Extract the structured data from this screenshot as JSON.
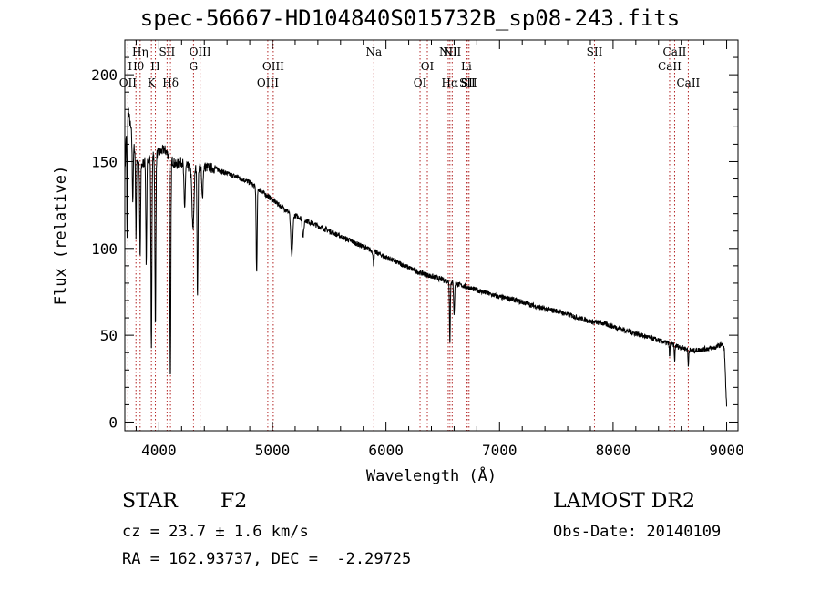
{
  "title": "spec-56667-HD104840S015732B_sp08-243.fits",
  "footer": {
    "class": "STAR",
    "subclass": "F2",
    "survey": "LAMOST DR2",
    "cz": "cz = 23.7 ± 1.6 km/s",
    "obs_date": "Obs-Date: 20140109",
    "radec": "RA = 162.93737, DEC =  -2.29725"
  },
  "colors": {
    "spectrum": "#000000",
    "line_markers": "#b22222",
    "axes": "#000000"
  },
  "chart_data": {
    "type": "line",
    "title": "spec-56667-HD104840S015732B_sp08-243.fits",
    "xlabel": "Wavelength (Å)",
    "ylabel": "Flux (relative)",
    "xlim": [
      3700,
      9100
    ],
    "ylim": [
      -5,
      220
    ],
    "xticks": [
      4000,
      5000,
      6000,
      7000,
      8000,
      9000
    ],
    "yticks": [
      0,
      50,
      100,
      150,
      200
    ],
    "grid": false,
    "series": [
      {
        "continuum": [
          [
            3700,
            140
          ],
          [
            3720,
            185
          ],
          [
            3750,
            170
          ],
          [
            3800,
            152
          ],
          [
            3850,
            148
          ],
          [
            3900,
            152
          ],
          [
            3950,
            153
          ],
          [
            4000,
            155
          ],
          [
            4050,
            157
          ],
          [
            4100,
            152
          ],
          [
            4150,
            148
          ],
          [
            4200,
            150
          ],
          [
            4250,
            147
          ],
          [
            4300,
            146
          ],
          [
            4350,
            147
          ],
          [
            4400,
            147
          ],
          [
            4500,
            146
          ],
          [
            4600,
            143
          ],
          [
            4700,
            141
          ],
          [
            4800,
            138
          ],
          [
            4900,
            133
          ],
          [
            5000,
            128
          ],
          [
            5100,
            123
          ],
          [
            5200,
            119
          ],
          [
            5300,
            116
          ],
          [
            5400,
            113
          ],
          [
            5500,
            110
          ],
          [
            5600,
            107
          ],
          [
            5700,
            104
          ],
          [
            5800,
            101
          ],
          [
            5900,
            98
          ],
          [
            6000,
            95
          ],
          [
            6100,
            92
          ],
          [
            6200,
            89
          ],
          [
            6300,
            86
          ],
          [
            6400,
            84
          ],
          [
            6500,
            82
          ],
          [
            6600,
            80
          ],
          [
            6700,
            78
          ],
          [
            6800,
            76
          ],
          [
            6900,
            74
          ],
          [
            7000,
            72
          ],
          [
            7100,
            71
          ],
          [
            7200,
            69
          ],
          [
            7300,
            67
          ],
          [
            7400,
            65
          ],
          [
            7500,
            64
          ],
          [
            7600,
            62
          ],
          [
            7700,
            60
          ],
          [
            7800,
            58
          ],
          [
            7900,
            57
          ],
          [
            8000,
            55
          ],
          [
            8100,
            53
          ],
          [
            8200,
            51
          ],
          [
            8300,
            49
          ],
          [
            8400,
            47
          ],
          [
            8500,
            45
          ],
          [
            8600,
            43
          ],
          [
            8700,
            41
          ],
          [
            8800,
            42
          ],
          [
            8900,
            43
          ],
          [
            8960,
            45
          ],
          [
            8980,
            42
          ],
          [
            9000,
            8
          ]
        ],
        "absorption_lines": [
          [
            3720,
            80,
            4
          ],
          [
            3770,
            35,
            6
          ],
          [
            3798,
            45,
            5
          ],
          [
            3835,
            55,
            6
          ],
          [
            3889,
            60,
            6
          ],
          [
            3934,
            110,
            6
          ],
          [
            3969,
            100,
            6
          ],
          [
            4101,
            130,
            6
          ],
          [
            4226,
            25,
            8
          ],
          [
            4300,
            35,
            12
          ],
          [
            4340,
            75,
            6
          ],
          [
            4383,
            18,
            8
          ],
          [
            4861,
            50,
            6
          ],
          [
            5170,
            25,
            12
          ],
          [
            5270,
            10,
            10
          ],
          [
            5890,
            7,
            6
          ],
          [
            6563,
            35,
            5
          ],
          [
            6600,
            18,
            6
          ],
          [
            8498,
            8,
            4
          ],
          [
            8542,
            10,
            4
          ],
          [
            8662,
            10,
            4
          ]
        ],
        "noise_amplitude": 3
      }
    ],
    "line_markers": [
      {
        "label": "OII",
        "wavelength": 3727,
        "row": 3
      },
      {
        "label": "Hθ",
        "wavelength": 3798,
        "row": 2
      },
      {
        "label": "Hη",
        "wavelength": 3835,
        "row": 1
      },
      {
        "label": "K",
        "wavelength": 3934,
        "row": 3
      },
      {
        "label": "H",
        "wavelength": 3969,
        "row": 2
      },
      {
        "label": "SII",
        "wavelength": 4072,
        "row": 1
      },
      {
        "label": "Hδ",
        "wavelength": 4102,
        "row": 3
      },
      {
        "label": "G",
        "wavelength": 4305,
        "row": 2
      },
      {
        "label": "OIII",
        "wavelength": 4363,
        "row": 1
      },
      {
        "label": "OIII",
        "wavelength": 4959,
        "row": 3
      },
      {
        "label": "OIII",
        "wavelength": 5007,
        "row": 2
      },
      {
        "label": "Na",
        "wavelength": 5893,
        "row": 1
      },
      {
        "label": "OI",
        "wavelength": 6300,
        "row": 3
      },
      {
        "label": "OI",
        "wavelength": 6364,
        "row": 2
      },
      {
        "label": "NII",
        "wavelength": 6548,
        "row": 1
      },
      {
        "label": "Hα",
        "wavelength": 6563,
        "row": 3
      },
      {
        "label": "NII",
        "wavelength": 6583,
        "row": 1
      },
      {
        "label": "Li",
        "wavelength": 6708,
        "row": 2
      },
      {
        "label": "SII",
        "wavelength": 6716,
        "row": 3
      },
      {
        "label": "SII",
        "wavelength": 6731,
        "row": 3
      },
      {
        "label": "SII",
        "wavelength": 7836,
        "row": 1
      },
      {
        "label": "CaII",
        "wavelength": 8498,
        "row": 2
      },
      {
        "label": "CaII",
        "wavelength": 8542,
        "row": 1
      },
      {
        "label": "CaII",
        "wavelength": 8662,
        "row": 3
      }
    ]
  }
}
